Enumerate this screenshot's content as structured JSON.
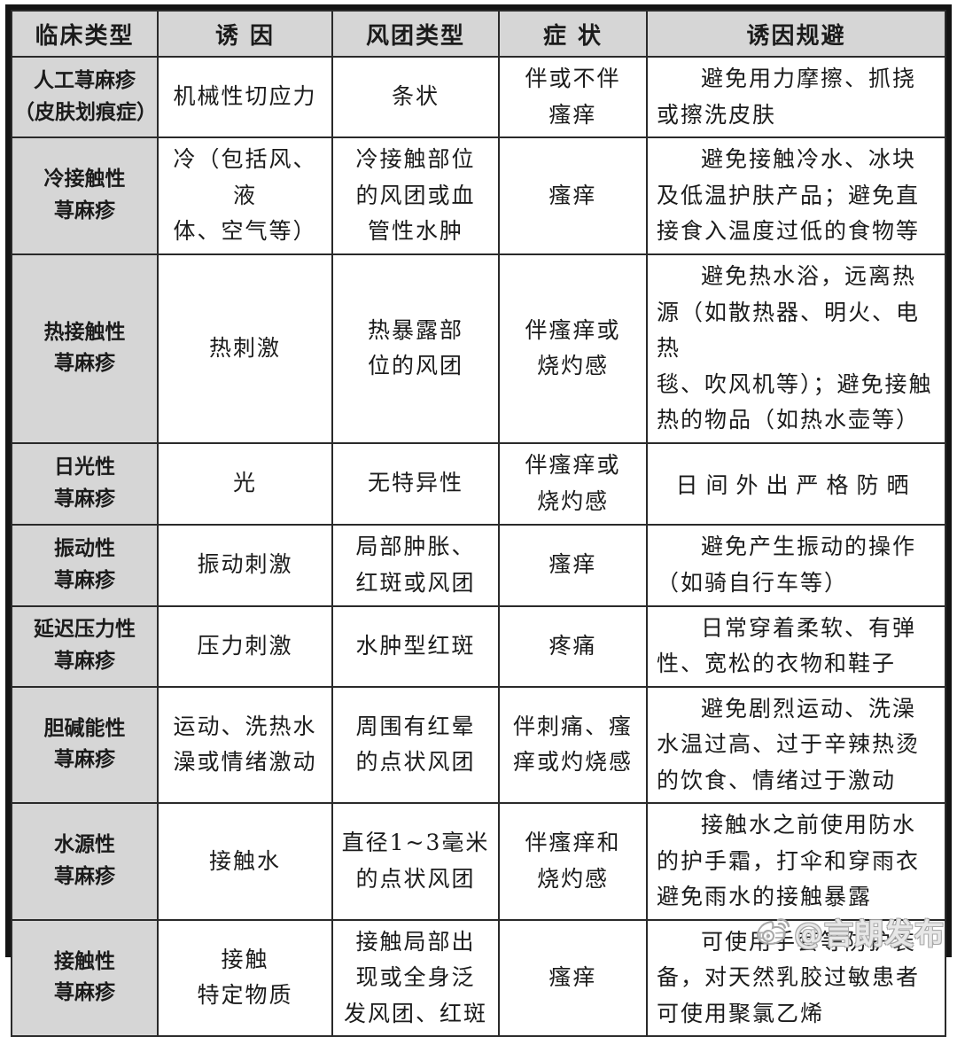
{
  "table": {
    "headers": [
      "临床类型",
      "诱 因",
      "风团类型",
      "症 状",
      "诱因规避"
    ],
    "rows": [
      {
        "clinical_type": "人工荨麻疹\n（皮肤划痕症）",
        "trigger": "机械性切应力",
        "wheal_type": "条状",
        "symptoms": "伴或不伴\n瘙痒",
        "avoidance": "避免用力摩擦、抓挠\n或擦洗皮肤"
      },
      {
        "clinical_type": "冷接触性\n荨麻疹",
        "trigger": "冷（包括风、液\n体、空气等）",
        "wheal_type": "冷接触部位\n的风团或血\n管性水肿",
        "symptoms": "瘙痒",
        "avoidance": "避免接触冷水、冰块\n及低温护肤产品；避免直\n接食入温度过低的食物等"
      },
      {
        "clinical_type": "热接触性\n荨麻疹",
        "trigger": "热刺激",
        "wheal_type": "热暴露部\n位的风团",
        "symptoms": "伴瘙痒或\n烧灼感",
        "avoidance": "避免热水浴，远离热\n源（如散热器、明火、电热\n毯、吹风机等）；避免接触\n热的物品（如热水壶等）"
      },
      {
        "clinical_type": "日光性\n荨麻疹",
        "trigger": "光",
        "wheal_type": "无特异性",
        "symptoms": "伴瘙痒或\n烧灼感",
        "avoidance": "日间外出严格防晒"
      },
      {
        "clinical_type": "振动性\n荨麻疹",
        "trigger": "振动刺激",
        "wheal_type": "局部肿胀、\n红斑或风团",
        "symptoms": "瘙痒",
        "avoidance": "避免产生振动的操作\n（如骑自行车等）"
      },
      {
        "clinical_type": "延迟压力性\n荨麻疹",
        "trigger": "压力刺激",
        "wheal_type": "水肿型红斑",
        "symptoms": "疼痛",
        "avoidance": "日常穿着柔软、有弹\n性、宽松的衣物和鞋子"
      },
      {
        "clinical_type": "胆碱能性\n荨麻疹",
        "trigger": "运动、洗热水\n澡或情绪激动",
        "wheal_type": "周围有红晕\n的点状风团",
        "symptoms": "伴刺痛、瘙\n痒或灼烧感",
        "avoidance": "避免剧烈运动、洗澡\n水温过高、过于辛辣热烫\n的饮食、情绪过于激动"
      },
      {
        "clinical_type": "水源性\n荨麻疹",
        "trigger": "接触水",
        "wheal_type": "直径1~3毫米\n的点状风团",
        "symptoms": "伴瘙痒和\n烧灼感",
        "avoidance": "接触水之前使用防水\n的护手霜，打伞和穿雨衣\n避免雨水的接触暴露"
      },
      {
        "clinical_type": "接触性\n荨麻疹",
        "trigger": "接触\n特定物质",
        "wheal_type": "接触局部出\n现或全身泛\n发风团、红斑",
        "symptoms": "瘙痒",
        "avoidance": "可使用手套等防护装\n备，对天然乳胶过敏患者\n可使用聚氯乙烯"
      }
    ]
  },
  "watermark": {
    "icon": "weibo-logo",
    "text": "@言朗发布"
  },
  "colors": {
    "header_bg": "#d6d6d6",
    "cell_bg": "#ffffff",
    "border_color": "#2a2a2a",
    "outer_border": "#141414",
    "text_color": "#1b1b1b",
    "watermark_color": "#a8a8a8"
  }
}
